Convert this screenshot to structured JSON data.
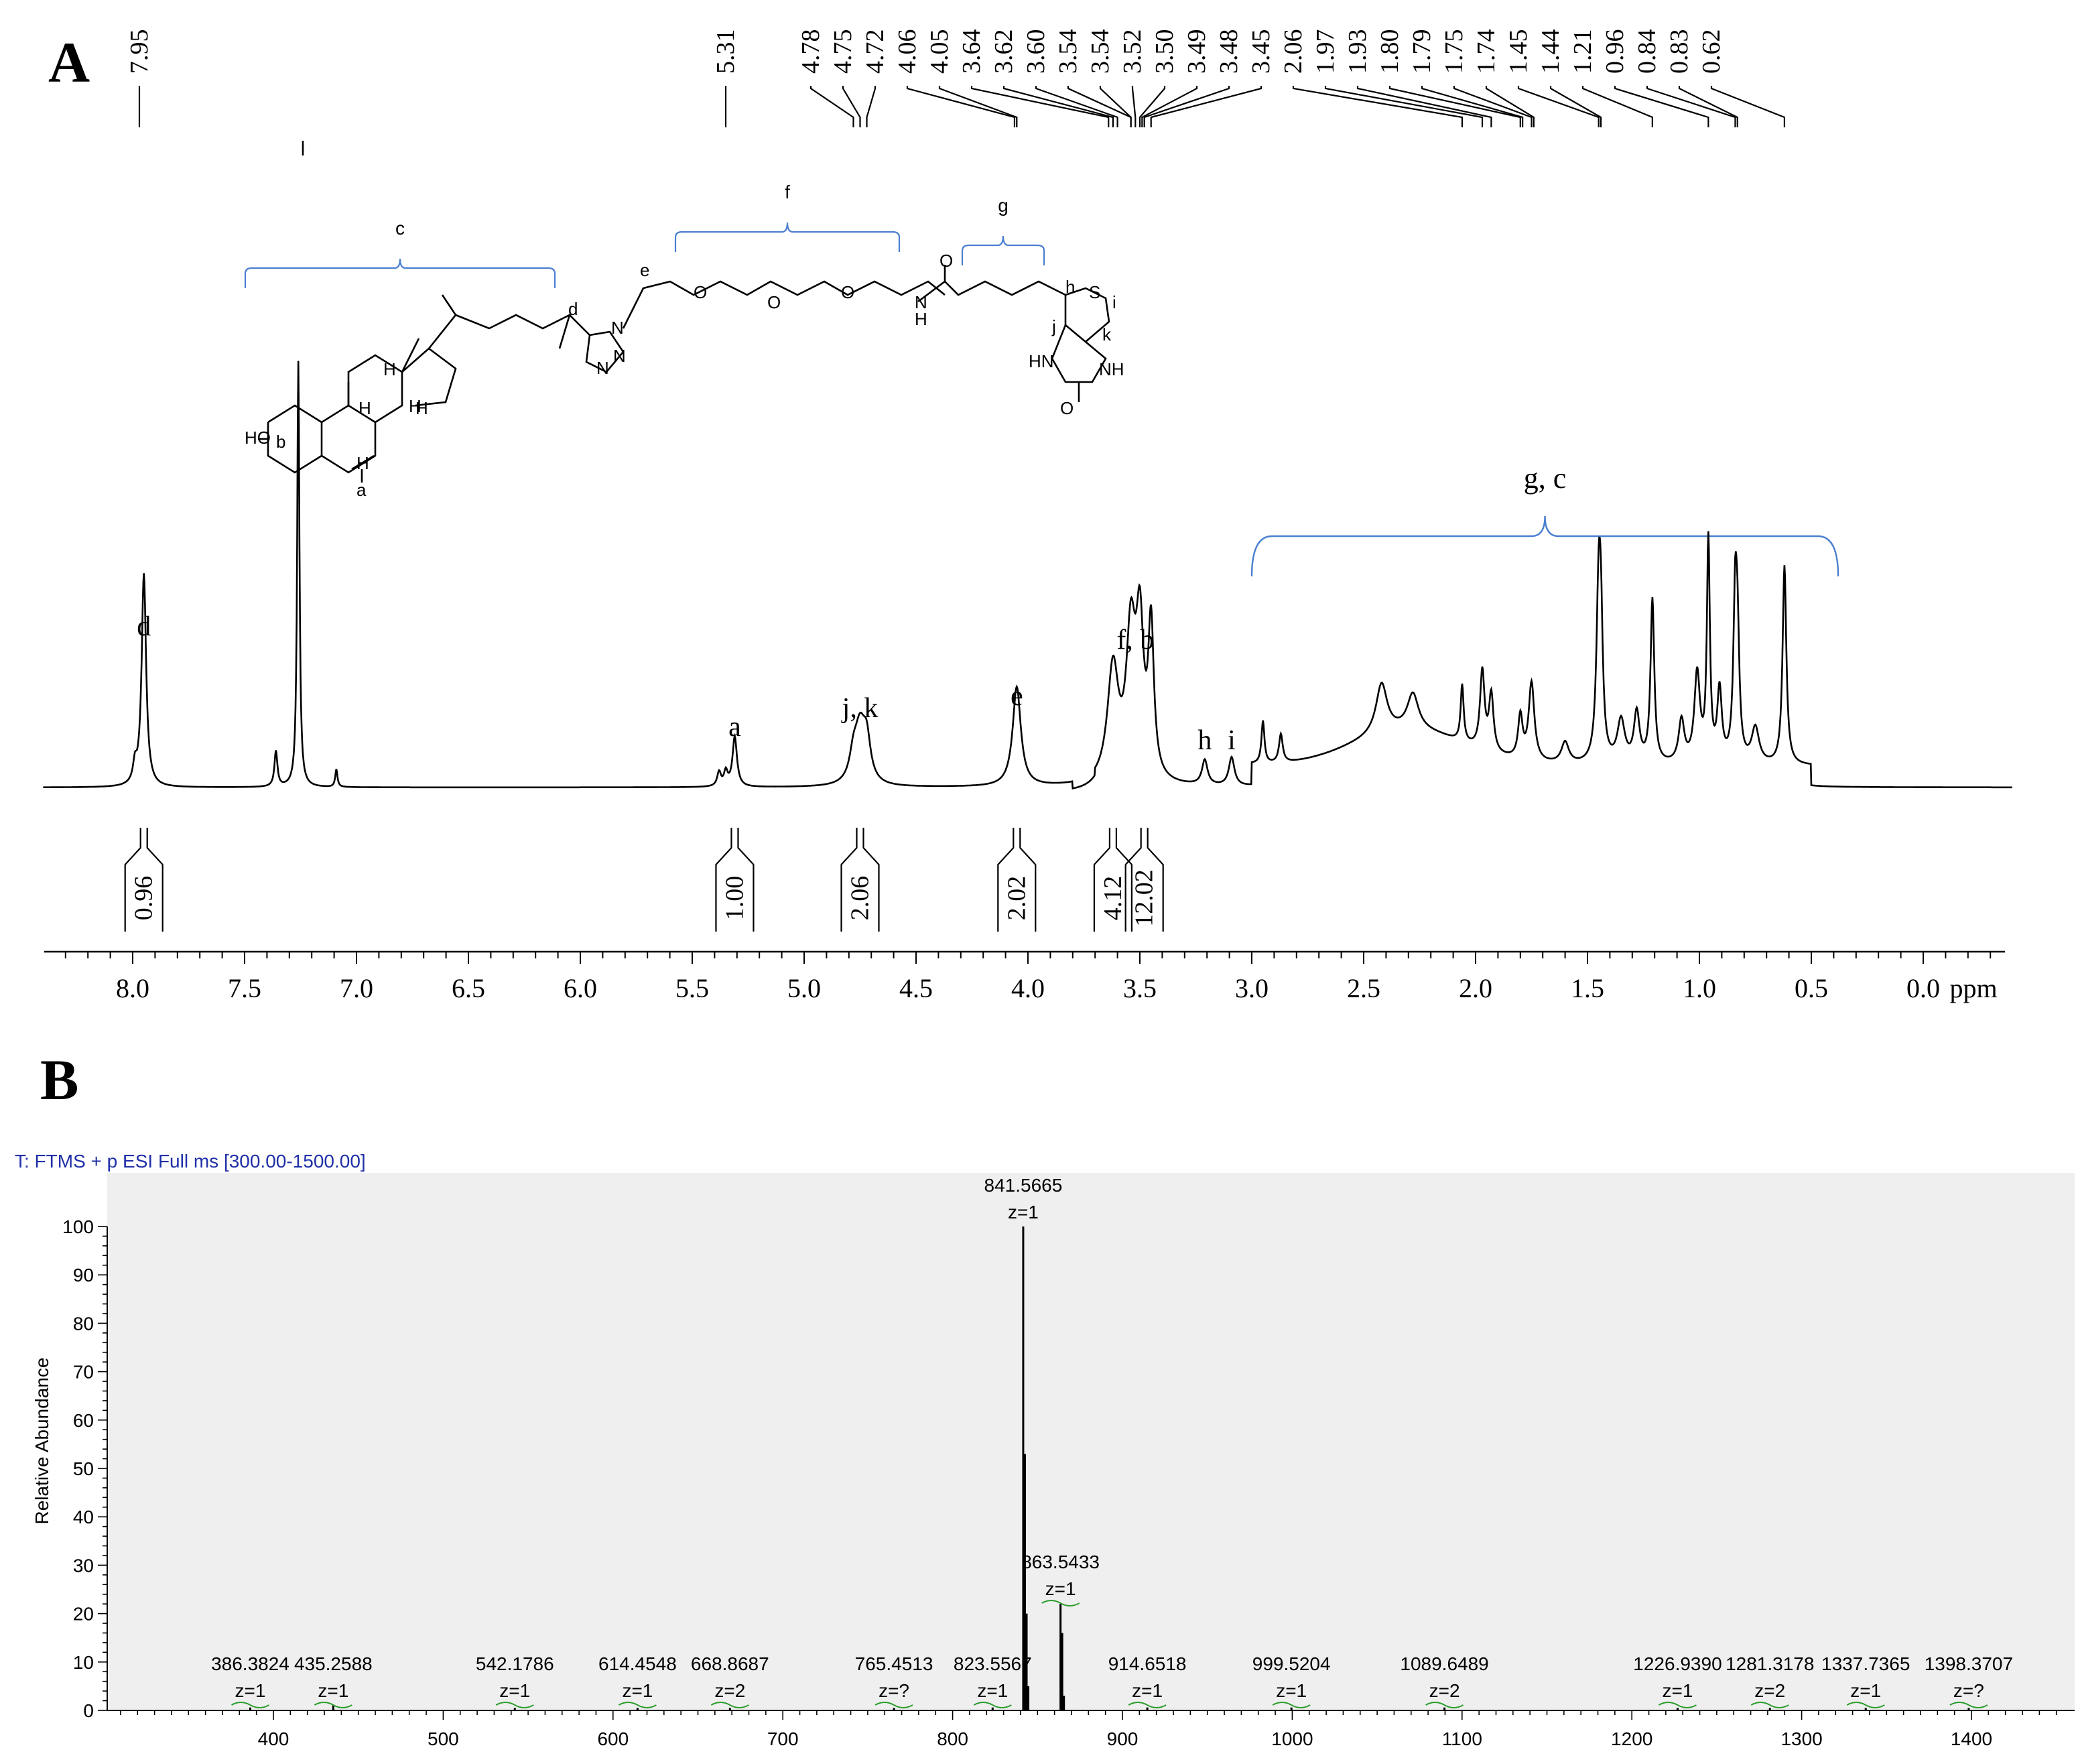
{
  "panels": {
    "a_label": "A",
    "b_label": "B"
  },
  "colors": {
    "spectrum": "#000000",
    "bracket": "#4a7fd0",
    "ms_title": "#1f2fa8",
    "ms_plot_bg": "#efefef",
    "charge_mark": "#2e9e2e"
  },
  "chart_data": [
    {
      "type": "line",
      "name": "1H NMR",
      "xlabel": "ppm",
      "xlim": [
        8.4,
        -0.4
      ],
      "x_reversed": true,
      "grid": false,
      "ticks": [
        "8.0",
        "7.5",
        "7.0",
        "6.5",
        "6.0",
        "5.5",
        "5.0",
        "4.5",
        "4.0",
        "3.5",
        "3.0",
        "2.5",
        "2.0",
        "1.5",
        "1.0",
        "0.5",
        "0.0"
      ],
      "tick_values": [
        8.0,
        7.5,
        7.0,
        6.5,
        6.0,
        5.5,
        5.0,
        4.5,
        4.0,
        3.5,
        3.0,
        2.5,
        2.0,
        1.5,
        1.0,
        0.5,
        0.0
      ],
      "peak_list": [
        "7.95",
        "5.31",
        "4.78",
        "4.75",
        "4.72",
        "4.06",
        "4.05",
        "3.64",
        "3.62",
        "3.60",
        "3.54",
        "3.54",
        "3.52",
        "3.50",
        "3.49",
        "3.48",
        "3.45",
        "2.06",
        "1.97",
        "1.93",
        "1.80",
        "1.79",
        "1.75",
        "1.74",
        "1.45",
        "1.44",
        "1.21",
        "0.96",
        "0.84",
        "0.83",
        "0.62"
      ],
      "peak_list_values": [
        7.95,
        5.31,
        4.78,
        4.75,
        4.72,
        4.06,
        4.05,
        3.64,
        3.62,
        3.6,
        3.54,
        3.54,
        3.52,
        3.5,
        3.49,
        3.48,
        3.45,
        2.06,
        1.97,
        1.93,
        1.8,
        1.79,
        1.75,
        1.74,
        1.45,
        1.44,
        1.21,
        0.96,
        0.84,
        0.83,
        0.62
      ],
      "peaks": [
        {
          "ppm": 7.95,
          "height": 0.6,
          "width": 0.012
        },
        {
          "ppm": 7.99,
          "height": 0.05,
          "width": 0.01
        },
        {
          "ppm": 7.26,
          "height": 1.2,
          "width": 0.006
        },
        {
          "ppm": 7.36,
          "height": 0.1,
          "width": 0.008
        },
        {
          "ppm": 7.09,
          "height": 0.05,
          "width": 0.006
        },
        {
          "ppm": 5.31,
          "height": 0.14,
          "width": 0.012
        },
        {
          "ppm": 5.38,
          "height": 0.04,
          "width": 0.01
        },
        {
          "ppm": 5.35,
          "height": 0.04,
          "width": 0.01
        },
        {
          "ppm": 4.75,
          "height": 0.16,
          "width": 0.03
        },
        {
          "ppm": 4.72,
          "height": 0.1,
          "width": 0.02
        },
        {
          "ppm": 4.78,
          "height": 0.06,
          "width": 0.02
        },
        {
          "ppm": 4.05,
          "height": 0.28,
          "width": 0.022
        },
        {
          "ppm": 3.62,
          "height": 0.32,
          "width": 0.03
        },
        {
          "ppm": 3.54,
          "height": 0.4,
          "width": 0.025
        },
        {
          "ppm": 3.5,
          "height": 0.4,
          "width": 0.02
        },
        {
          "ppm": 3.45,
          "height": 0.42,
          "width": 0.015
        },
        {
          "ppm": 3.21,
          "height": 0.07,
          "width": 0.015
        },
        {
          "ppm": 3.09,
          "height": 0.08,
          "width": 0.015
        },
        {
          "ppm": 2.95,
          "height": 0.12,
          "width": 0.008
        },
        {
          "ppm": 2.87,
          "height": 0.08,
          "width": 0.01
        },
        {
          "ppm": 2.42,
          "height": 0.14,
          "width": 0.03
        },
        {
          "ppm": 2.28,
          "height": 0.1,
          "width": 0.03
        },
        {
          "ppm": 2.06,
          "height": 0.16,
          "width": 0.008
        },
        {
          "ppm": 1.97,
          "height": 0.22,
          "width": 0.012
        },
        {
          "ppm": 1.93,
          "height": 0.16,
          "width": 0.012
        },
        {
          "ppm": 1.8,
          "height": 0.12,
          "width": 0.012
        },
        {
          "ppm": 1.75,
          "height": 0.22,
          "width": 0.015
        },
        {
          "ppm": 1.6,
          "height": 0.06,
          "width": 0.02
        },
        {
          "ppm": 1.45,
          "height": 0.46,
          "width": 0.012
        },
        {
          "ppm": 1.44,
          "height": 0.3,
          "width": 0.01
        },
        {
          "ppm": 1.35,
          "height": 0.12,
          "width": 0.02
        },
        {
          "ppm": 1.28,
          "height": 0.14,
          "width": 0.015
        },
        {
          "ppm": 1.21,
          "height": 0.46,
          "width": 0.01
        },
        {
          "ppm": 1.08,
          "height": 0.12,
          "width": 0.015
        },
        {
          "ppm": 1.01,
          "height": 0.25,
          "width": 0.015
        },
        {
          "ppm": 0.96,
          "height": 0.62,
          "width": 0.008
        },
        {
          "ppm": 0.91,
          "height": 0.2,
          "width": 0.012
        },
        {
          "ppm": 0.84,
          "height": 0.42,
          "width": 0.01
        },
        {
          "ppm": 0.83,
          "height": 0.3,
          "width": 0.01
        },
        {
          "ppm": 0.75,
          "height": 0.1,
          "width": 0.02
        },
        {
          "ppm": 0.62,
          "height": 0.56,
          "width": 0.01
        }
      ],
      "integrals": [
        {
          "ppm": 7.95,
          "value": "0.96"
        },
        {
          "ppm": 5.31,
          "value": "1.00"
        },
        {
          "ppm": 4.75,
          "value": "2.06"
        },
        {
          "ppm": 4.05,
          "value": "2.02"
        },
        {
          "ppm": 3.62,
          "value": "4.12"
        },
        {
          "ppm": 3.48,
          "value": "12.02"
        }
      ],
      "peak_labels": [
        {
          "text": "d",
          "ppm": 7.95
        },
        {
          "text": "a",
          "ppm": 5.31
        },
        {
          "text": "j, k",
          "ppm": 4.75
        },
        {
          "text": "e",
          "ppm": 4.05
        },
        {
          "text": "f, b",
          "ppm": 3.52
        },
        {
          "text": "h",
          "ppm": 3.21
        },
        {
          "text": "i",
          "ppm": 3.09
        }
      ],
      "region_label": "g, c",
      "region_range": [
        3.0,
        0.38
      ]
    },
    {
      "type": "bar",
      "name": "ESI mass spectrum",
      "title": "T: FTMS + p ESI Full ms [300.00-1500.00]",
      "ylabel": "Relative Abundance",
      "xlim": [
        300,
        1500
      ],
      "ylim": [
        0,
        100
      ],
      "xticks": [
        400,
        500,
        600,
        700,
        800,
        900,
        1000,
        1100,
        1200,
        1300,
        1400
      ],
      "yticks": [
        0,
        10,
        20,
        30,
        40,
        50,
        60,
        70,
        80,
        90,
        100
      ],
      "peaks": [
        {
          "mz": 386.3824,
          "abundance": 0.6,
          "label": "386.3824",
          "charge": "z=1"
        },
        {
          "mz": 435.2588,
          "abundance": 1.2,
          "label": "435.2588",
          "charge": "z=1"
        },
        {
          "mz": 542.1786,
          "abundance": 0.5,
          "label": "542.1786",
          "charge": "z=1"
        },
        {
          "mz": 614.4548,
          "abundance": 0.5,
          "label": "614.4548",
          "charge": "z=1"
        },
        {
          "mz": 668.8687,
          "abundance": 0.5,
          "label": "668.8687",
          "charge": "z=2"
        },
        {
          "mz": 765.4513,
          "abundance": 0.5,
          "label": "765.4513",
          "charge": "z=?"
        },
        {
          "mz": 823.5567,
          "abundance": 0.6,
          "label": "823.5567",
          "charge": "z=1"
        },
        {
          "mz": 841.5665,
          "abundance": 100,
          "label": "841.5665",
          "charge": "z=1"
        },
        {
          "mz": 842.5698,
          "abundance": 53,
          "label": "",
          "charge": ""
        },
        {
          "mz": 843.572,
          "abundance": 20,
          "label": "",
          "charge": ""
        },
        {
          "mz": 844.575,
          "abundance": 5,
          "label": "",
          "charge": ""
        },
        {
          "mz": 863.5433,
          "abundance": 22,
          "label": "863.5433",
          "charge": "z=1"
        },
        {
          "mz": 864.546,
          "abundance": 16,
          "label": "",
          "charge": ""
        },
        {
          "mz": 865.55,
          "abundance": 3,
          "label": "",
          "charge": ""
        },
        {
          "mz": 914.6518,
          "abundance": 0.6,
          "label": "914.6518",
          "charge": "z=1"
        },
        {
          "mz": 999.5204,
          "abundance": 0.6,
          "label": "999.5204",
          "charge": "z=1"
        },
        {
          "mz": 1089.6489,
          "abundance": 0.6,
          "label": "1089.6489",
          "charge": "z=2"
        },
        {
          "mz": 1226.939,
          "abundance": 0.5,
          "label": "1226.9390",
          "charge": "z=1"
        },
        {
          "mz": 1281.3178,
          "abundance": 0.5,
          "label": "1281.3178",
          "charge": "z=2"
        },
        {
          "mz": 1337.7365,
          "abundance": 0.5,
          "label": "1337.7365",
          "charge": "z=1"
        },
        {
          "mz": 1398.3707,
          "abundance": 0.5,
          "label": "1398.3707",
          "charge": "z=?"
        }
      ]
    }
  ],
  "structure": {
    "atom_labels": {
      "ho": "HO",
      "b": "b",
      "h_a": "H",
      "a": "a",
      "h1": "H",
      "h2": "H",
      "h3": "H",
      "h4": "H",
      "d": "d",
      "n1": "N",
      "n2": "N",
      "n3": "N",
      "e": "e",
      "o1": "O",
      "o2": "O",
      "o3": "O",
      "n_amide": "N",
      "h_amide": "H",
      "o_carbonyl": "O",
      "h": "h",
      "s": "S",
      "i": "i",
      "j": "j",
      "k": "k",
      "hn": "HN",
      "nh": "NH",
      "o_urea": "O"
    },
    "brackets": {
      "c": "c",
      "f": "f",
      "g": "g"
    }
  }
}
